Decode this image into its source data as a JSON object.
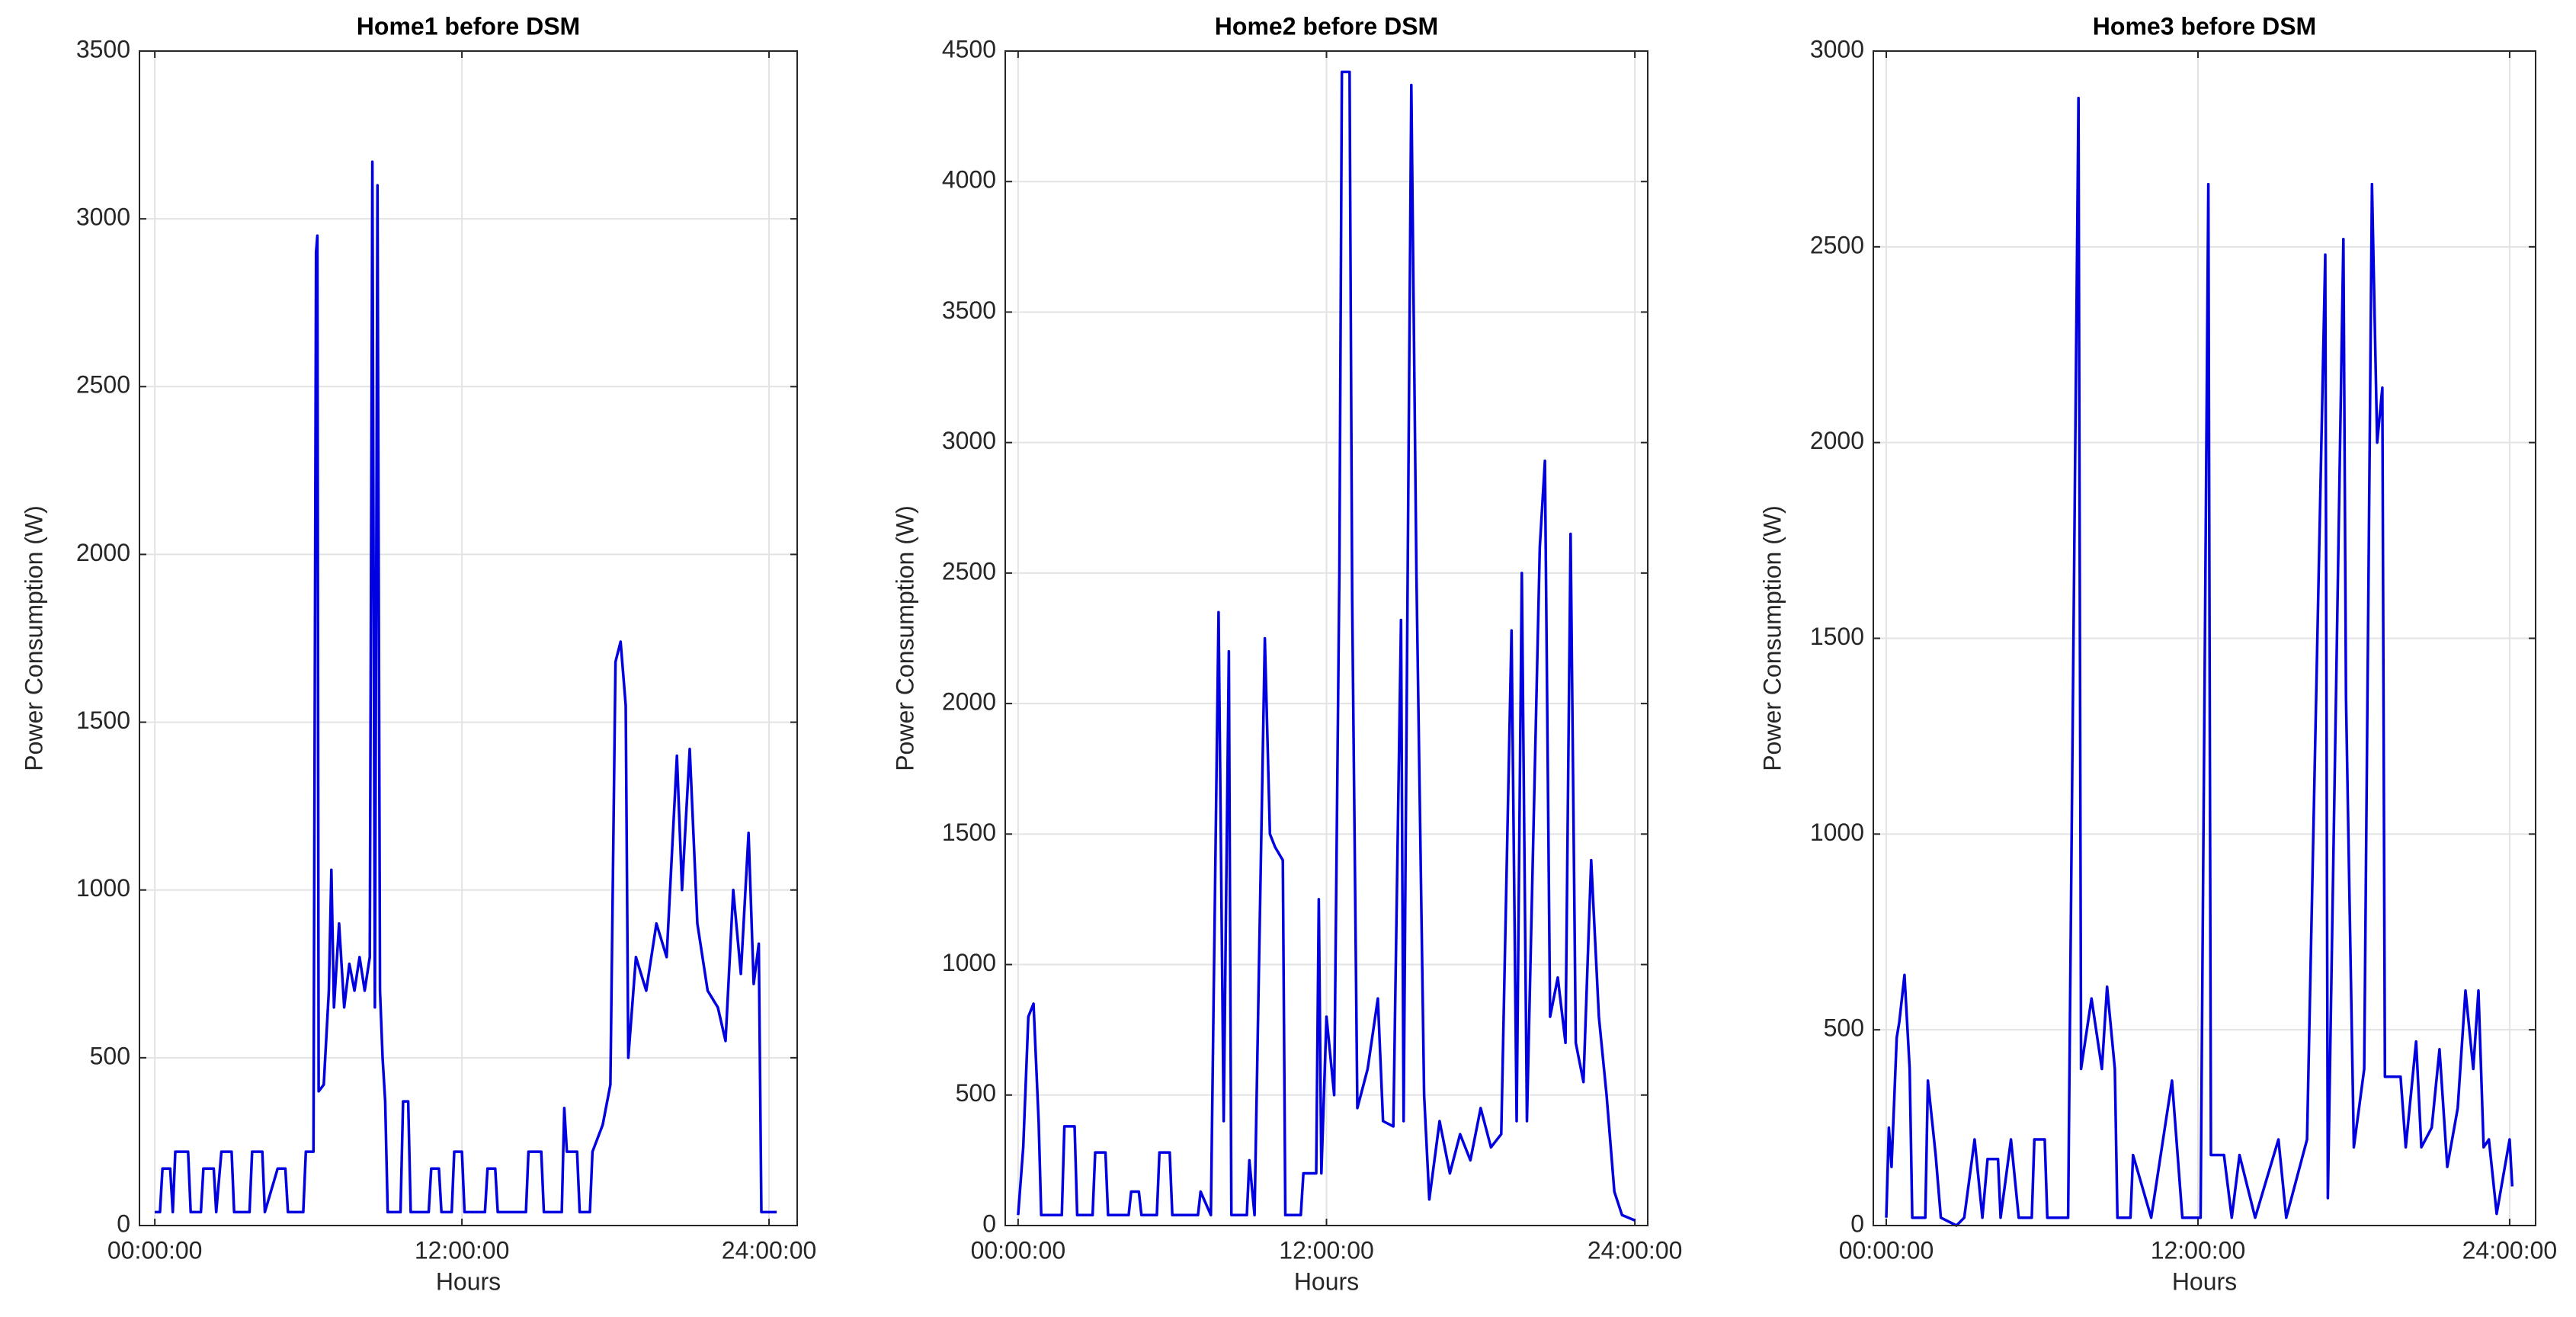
{
  "chart_data": [
    {
      "type": "line",
      "title": "Home1 before DSM",
      "xlabel": "Hours",
      "ylabel": "Power Consumption (W)",
      "color": "#0000e0",
      "grid": true,
      "xlim": [
        -0.6,
        25.1
      ],
      "xticks": [
        {
          "value": 0,
          "label": "00:00:00"
        },
        {
          "value": 12,
          "label": "12:00:00"
        },
        {
          "value": 24,
          "label": "24:00:00"
        }
      ],
      "ylim": [
        0,
        3500
      ],
      "yticks": [
        0,
        500,
        1000,
        1500,
        2000,
        2500,
        3000,
        3500
      ],
      "x": [
        0,
        0.2,
        0.3,
        0.6,
        0.7,
        0.8,
        1.3,
        1.4,
        1.8,
        1.9,
        2.3,
        2.4,
        2.6,
        3.0,
        3.1,
        3.7,
        3.8,
        4.2,
        4.3,
        4.8,
        5.1,
        5.2,
        5.8,
        5.9,
        6.2,
        6.3,
        6.35,
        6.4,
        6.6,
        6.8,
        6.9,
        7.0,
        7.2,
        7.4,
        7.6,
        7.8,
        8.0,
        8.2,
        8.4,
        8.5,
        8.6,
        8.7,
        8.8,
        8.9,
        9.0,
        9.1,
        9.6,
        9.7,
        9.9,
        10.0,
        10.7,
        10.8,
        11.1,
        11.2,
        11.6,
        11.7,
        12.0,
        12.1,
        12.9,
        13.0,
        13.3,
        13.4,
        14.5,
        14.6,
        15.1,
        15.2,
        15.9,
        16.0,
        16.1,
        16.5,
        16.6,
        17.0,
        17.1,
        17.5,
        17.8,
        18.0,
        18.2,
        18.4,
        18.5,
        18.8,
        19.2,
        19.6,
        20.0,
        20.4,
        20.6,
        20.9,
        21.2,
        21.6,
        22.0,
        22.3,
        22.6,
        22.9,
        23.2,
        23.4,
        23.6,
        23.7,
        24.3
      ],
      "values": [
        40,
        40,
        170,
        170,
        40,
        220,
        220,
        40,
        40,
        170,
        170,
        40,
        220,
        220,
        40,
        40,
        220,
        220,
        40,
        170,
        170,
        40,
        40,
        220,
        220,
        2900,
        2950,
        400,
        420,
        700,
        1060,
        650,
        900,
        650,
        780,
        700,
        800,
        700,
        800,
        3170,
        650,
        3100,
        700,
        500,
        370,
        40,
        40,
        370,
        370,
        40,
        40,
        170,
        170,
        40,
        40,
        220,
        220,
        40,
        40,
        170,
        170,
        40,
        40,
        220,
        220,
        40,
        40,
        350,
        220,
        220,
        40,
        40,
        220,
        300,
        420,
        1680,
        1740,
        1550,
        500,
        800,
        700,
        900,
        800,
        1400,
        1000,
        1420,
        900,
        700,
        650,
        550,
        1000,
        750,
        1170,
        720,
        840,
        40,
        40
      ]
    },
    {
      "type": "line",
      "title": "Home2 before DSM",
      "xlabel": "Hours",
      "ylabel": "Power Consumption (W)",
      "color": "#0000e0",
      "grid": true,
      "xlim": [
        -0.5,
        24.5
      ],
      "xticks": [
        {
          "value": 0,
          "label": "00:00:00"
        },
        {
          "value": 12,
          "label": "12:00:00"
        },
        {
          "value": 24,
          "label": "24:00:00"
        }
      ],
      "ylim": [
        0,
        4500
      ],
      "yticks": [
        0,
        500,
        1000,
        1500,
        2000,
        2500,
        3000,
        3500,
        4000,
        4500
      ],
      "x": [
        0,
        0.2,
        0.4,
        0.6,
        0.8,
        0.9,
        1.7,
        1.8,
        2.2,
        2.3,
        2.9,
        3.0,
        3.4,
        3.5,
        4.3,
        4.4,
        4.7,
        4.8,
        5.4,
        5.5,
        5.9,
        6.0,
        7.0,
        7.1,
        7.5,
        7.8,
        8.0,
        8.2,
        8.3,
        8.9,
        9.0,
        9.2,
        9.6,
        9.8,
        10.0,
        10.3,
        10.4,
        11.0,
        11.1,
        11.6,
        11.7,
        11.8,
        12.0,
        12.3,
        12.5,
        12.6,
        12.9,
        13.0,
        13.2,
        13.6,
        14.0,
        14.2,
        14.6,
        14.9,
        15.0,
        15.3,
        15.5,
        15.8,
        16.0,
        16.4,
        16.8,
        17.2,
        17.6,
        18.0,
        18.4,
        18.8,
        19.2,
        19.4,
        19.6,
        19.8,
        20.3,
        20.5,
        20.7,
        21.0,
        21.3,
        21.5,
        21.7,
        22.0,
        22.3,
        22.6,
        22.9,
        23.2,
        23.5,
        24.0
      ],
      "values": [
        40,
        300,
        800,
        850,
        400,
        40,
        40,
        380,
        380,
        40,
        40,
        280,
        280,
        40,
        40,
        130,
        130,
        40,
        40,
        280,
        280,
        40,
        40,
        130,
        40,
        2350,
        400,
        2200,
        40,
        40,
        250,
        40,
        2250,
        1500,
        1450,
        1400,
        40,
        40,
        200,
        200,
        1250,
        200,
        800,
        500,
        2500,
        4420,
        4420,
        2400,
        450,
        600,
        870,
        400,
        380,
        2320,
        400,
        4370,
        2500,
        500,
        100,
        400,
        200,
        350,
        250,
        450,
        300,
        350,
        2280,
        400,
        2500,
        400,
        2600,
        2930,
        800,
        950,
        700,
        2650,
        700,
        550,
        1400,
        800,
        500,
        130,
        40,
        20
      ]
    },
    {
      "type": "line",
      "title": "Home3 before DSM",
      "xlabel": "Hours",
      "ylabel": "Power Consumption (W)",
      "color": "#0000e0",
      "grid": true,
      "xlim": [
        -0.5,
        25
      ],
      "xticks": [
        {
          "value": 0,
          "label": "00:00:00"
        },
        {
          "value": 12,
          "label": "12:00:00"
        },
        {
          "value": 24,
          "label": "24:00:00"
        }
      ],
      "ylim": [
        0,
        3000
      ],
      "yticks": [
        0,
        500,
        1000,
        1500,
        2000,
        2500,
        3000
      ],
      "x": [
        0,
        0.1,
        0.2,
        0.4,
        0.5,
        0.7,
        0.9,
        1.0,
        1.5,
        1.6,
        1.9,
        2.1,
        2.7,
        3.0,
        3.4,
        3.7,
        3.9,
        4.3,
        4.4,
        4.8,
        5.1,
        5.6,
        5.7,
        6.1,
        6.2,
        7.0,
        7.4,
        7.5,
        7.9,
        8.3,
        8.5,
        8.8,
        8.9,
        9.4,
        9.5,
        10.2,
        11.0,
        11.4,
        12.1,
        12.4,
        12.5,
        13.0,
        13.3,
        13.6,
        14.2,
        15.1,
        15.4,
        16.2,
        16.9,
        17.0,
        17.6,
        17.7,
        18.0,
        18.4,
        18.7,
        18.9,
        19.1,
        19.2,
        19.8,
        20.0,
        20.4,
        20.6,
        21.0,
        21.3,
        21.6,
        22.0,
        22.3,
        22.6,
        22.8,
        23.0,
        23.2,
        23.5,
        24.0,
        24.1
      ],
      "values": [
        20,
        250,
        150,
        480,
        520,
        640,
        400,
        20,
        20,
        370,
        180,
        20,
        0,
        20,
        220,
        20,
        170,
        170,
        20,
        220,
        20,
        20,
        220,
        220,
        20,
        20,
        2880,
        400,
        580,
        400,
        610,
        400,
        20,
        20,
        180,
        20,
        370,
        20,
        20,
        2660,
        180,
        180,
        20,
        180,
        20,
        220,
        20,
        220,
        2480,
        70,
        2520,
        1350,
        200,
        400,
        2660,
        2000,
        2140,
        380,
        380,
        200,
        470,
        200,
        250,
        450,
        150,
        300,
        600,
        400,
        600,
        200,
        220,
        30,
        220,
        100
      ]
    }
  ]
}
